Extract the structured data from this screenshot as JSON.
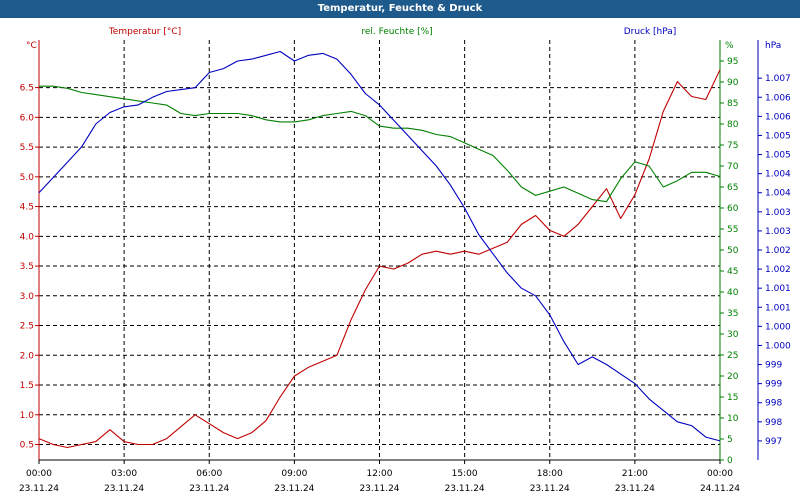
{
  "window": {
    "title": "Temperatur, Feuchte & Druck"
  },
  "chart_data": {
    "type": "line",
    "title": "Temperatur, Feuchte & Druck",
    "colors": {
      "temp": "#c00000",
      "hum": "#008000",
      "press": "#0000c0"
    },
    "x": {
      "time_labels": [
        "00:00",
        "03:00",
        "06:00",
        "09:00",
        "12:00",
        "15:00",
        "18:00",
        "21:00",
        "00:00"
      ],
      "date_labels": [
        "23.11.24",
        "23.11.24",
        "23.11.24",
        "23.11.24",
        "23.11.24",
        "23.11.24",
        "23.11.24",
        "23.11.24",
        "24.11.24"
      ],
      "range_hours": [
        0,
        24
      ]
    },
    "axes": {
      "left": {
        "label": "Temperatur [°C]",
        "unit": "°C",
        "ylim": [
          0.24,
          7.3
        ],
        "ticks": [
          "0.5",
          "1.0",
          "1.5",
          "2.0",
          "2.5",
          "3.0",
          "3.5",
          "4.0",
          "4.5",
          "5.0",
          "5.5",
          "6.0",
          "6.5"
        ],
        "tick_values": [
          0.5,
          1.0,
          1.5,
          2.0,
          2.5,
          3.0,
          3.5,
          4.0,
          4.5,
          5.0,
          5.5,
          6.0,
          6.5
        ]
      },
      "middle": {
        "label": "rel. Feuchte [%]",
        "unit": "%",
        "ylim": [
          0,
          100
        ],
        "ticks": [
          "0",
          "5",
          "10",
          "15",
          "20",
          "25",
          "30",
          "35",
          "40",
          "45",
          "50",
          "55",
          "60",
          "65",
          "70",
          "75",
          "80",
          "85",
          "90",
          "95"
        ],
        "tick_values": [
          0,
          5,
          10,
          15,
          20,
          25,
          30,
          35,
          40,
          45,
          50,
          55,
          60,
          65,
          70,
          75,
          80,
          85,
          90,
          95
        ]
      },
      "right": {
        "label": "Druck [hPa]",
        "unit": "hPa",
        "ylim": [
          996.5,
          1007.5
        ],
        "ticks": [
          "997",
          "998",
          "998",
          "999",
          "999",
          "1.000",
          "1.000",
          "1.001",
          "1.001",
          "1.002",
          "1.002",
          "1.003",
          "1.003",
          "1.004",
          "1.004",
          "1.005",
          "1.005",
          "1.006",
          "1.006",
          "1.007"
        ],
        "tick_values": [
          997,
          997.5,
          998,
          998.5,
          999,
          999.5,
          1000,
          1000.5,
          1001,
          1001.5,
          1002,
          1002.5,
          1003,
          1003.5,
          1004,
          1004.5,
          1005,
          1005.5,
          1006,
          1006.5
        ]
      }
    },
    "series": [
      {
        "name": "Temperatur [°C]",
        "key": "temp",
        "axis": "left",
        "x": [
          0,
          0.5,
          1,
          1.5,
          2,
          2.5,
          3,
          3.5,
          4,
          4.5,
          5,
          5.5,
          6,
          6.5,
          7,
          7.5,
          8,
          8.5,
          9,
          9.5,
          10,
          10.5,
          11,
          11.5,
          12,
          12.5,
          13,
          13.5,
          14,
          14.5,
          15,
          15.5,
          16,
          16.5,
          17,
          17.5,
          18,
          18.5,
          19,
          19.5,
          20,
          20.5,
          21,
          21.5,
          22,
          22.5,
          23,
          23.5,
          24
        ],
        "values": [
          0.6,
          0.5,
          0.45,
          0.5,
          0.55,
          0.75,
          0.55,
          0.5,
          0.5,
          0.6,
          0.8,
          1.0,
          0.85,
          0.7,
          0.6,
          0.7,
          0.9,
          1.3,
          1.65,
          1.8,
          1.9,
          2.0,
          2.6,
          3.1,
          3.5,
          3.45,
          3.55,
          3.7,
          3.75,
          3.7,
          3.75,
          3.7,
          3.8,
          3.9,
          4.2,
          4.35,
          4.1,
          4.0,
          4.2,
          4.5,
          4.8,
          4.3,
          4.7,
          5.3,
          6.1,
          6.6,
          6.35,
          6.3,
          6.8
        ]
      },
      {
        "name": "rel. Feuchte [%]",
        "key": "hum",
        "axis": "middle",
        "x": [
          0,
          0.5,
          1,
          1.5,
          2,
          2.5,
          3,
          3.5,
          4,
          4.5,
          5,
          5.5,
          6,
          6.5,
          7,
          7.5,
          8,
          8.5,
          9,
          9.5,
          10,
          10.5,
          11,
          11.5,
          12,
          12.5,
          13,
          13.5,
          14,
          14.5,
          15,
          15.5,
          16,
          16.5,
          17,
          17.5,
          18,
          18.5,
          19,
          19.5,
          20,
          20.5,
          21,
          21.5,
          22,
          22.5,
          23,
          23.5,
          24
        ],
        "values": [
          89,
          89,
          88.5,
          87.5,
          87,
          86.5,
          86,
          85.5,
          85,
          84.5,
          82.5,
          82,
          82.5,
          82.5,
          82.5,
          82,
          81,
          80.5,
          80.5,
          81,
          82,
          82.5,
          83,
          82,
          79.5,
          79,
          79,
          78.5,
          77.5,
          77,
          75.5,
          74,
          72.5,
          69,
          65,
          63,
          64,
          65,
          63.5,
          62,
          61.5,
          67,
          71,
          70,
          65,
          66.5,
          68.5,
          68.5,
          67.5
        ]
      },
      {
        "name": "Druck [hPa]",
        "key": "press",
        "axis": "right",
        "x": [
          0,
          0.5,
          1,
          1.5,
          2,
          2.5,
          3,
          3.5,
          4,
          4.5,
          5,
          5.5,
          6,
          6.5,
          7,
          7.5,
          8,
          8.5,
          9,
          9.5,
          10,
          10.5,
          11,
          11.5,
          12,
          12.5,
          13,
          13.5,
          14,
          14.5,
          15,
          15.5,
          16,
          16.5,
          17,
          17.5,
          18,
          18.5,
          19,
          19.5,
          20,
          20.5,
          21,
          21.5,
          22,
          22.5,
          23,
          23.5,
          24
        ],
        "values": [
          1003.5,
          1003.9,
          1004.3,
          1004.7,
          1005.3,
          1005.6,
          1005.75,
          1005.8,
          1006.0,
          1006.15,
          1006.2,
          1006.25,
          1006.65,
          1006.75,
          1006.95,
          1007.0,
          1007.1,
          1007.2,
          1006.95,
          1007.1,
          1007.15,
          1007.0,
          1006.6,
          1006.1,
          1005.8,
          1005.4,
          1005.0,
          1004.6,
          1004.2,
          1003.7,
          1003.1,
          1002.4,
          1001.9,
          1001.4,
          1001.0,
          1000.8,
          1000.3,
          999.6,
          999.0,
          999.2,
          999.0,
          998.75,
          998.5,
          998.1,
          997.8,
          997.5,
          997.4,
          997.1,
          997.0
        ]
      }
    ]
  }
}
